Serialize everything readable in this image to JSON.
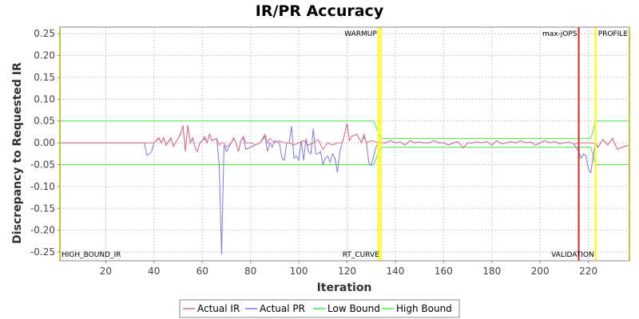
{
  "chart_data": {
    "type": "line",
    "title": "IR/PR Accuracy",
    "xlabel": "Iteration",
    "ylabel": "Discrepancy to Requested IR",
    "xlim": [
      1,
      237
    ],
    "ylim": [
      -0.27,
      0.265
    ],
    "x_ticks": [
      20,
      40,
      60,
      80,
      100,
      120,
      140,
      160,
      180,
      200,
      220
    ],
    "y_ticks": [
      -0.25,
      -0.2,
      -0.15,
      -0.1,
      -0.05,
      0.0,
      0.05,
      0.1,
      0.15,
      0.2,
      0.25
    ],
    "x_tick_labels": [
      "20",
      "40",
      "60",
      "80",
      "100",
      "120",
      "140",
      "160",
      "180",
      "200",
      "220"
    ],
    "y_tick_labels": [
      "-0.25",
      "-0.20",
      "-0.15",
      "-0.10",
      "-0.05",
      "0.00",
      "0.05",
      "0.10",
      "0.15",
      "0.20",
      "0.25"
    ],
    "grid": true,
    "legend_position": "bottom",
    "series": [
      {
        "name": "Actual IR",
        "color": "#e0707a",
        "points": [
          [
            1,
            0
          ],
          [
            36,
            0
          ],
          [
            38,
            0.0
          ],
          [
            40,
            0.0
          ],
          [
            42,
            0.012
          ],
          [
            43,
            0.0
          ],
          [
            44,
            0.012
          ],
          [
            45,
            -0.005
          ],
          [
            47,
            0.012
          ],
          [
            48,
            -0.008
          ],
          [
            50,
            0.01
          ],
          [
            51,
            0.022
          ],
          [
            52,
            0.04
          ],
          [
            53,
            -0.018
          ],
          [
            54,
            0.04
          ],
          [
            55,
            0.0
          ],
          [
            56,
            0.012
          ],
          [
            57,
            -0.01
          ],
          [
            58,
            -0.02
          ],
          [
            59,
            0.0
          ],
          [
            60,
            0.005
          ],
          [
            61,
            0.015
          ],
          [
            62,
            0.0
          ],
          [
            63,
            0.02
          ],
          [
            64,
            0.005
          ],
          [
            66,
            0.01
          ],
          [
            67,
            -0.005
          ],
          [
            68,
            0.0
          ],
          [
            69,
            0.0
          ],
          [
            70,
            -0.01
          ],
          [
            72,
            0.0
          ],
          [
            73,
            0.012
          ],
          [
            74,
            0.0
          ],
          [
            75,
            -0.02
          ],
          [
            76,
            0.005
          ],
          [
            77,
            0.015
          ],
          [
            78,
            0.0
          ],
          [
            80,
            0.0
          ],
          [
            82,
            -0.005
          ],
          [
            84,
            0.0
          ],
          [
            86,
            0.02
          ],
          [
            87,
            0.0
          ],
          [
            88,
            0.01
          ],
          [
            90,
            0.0
          ],
          [
            92,
            0.005
          ],
          [
            94,
            0.0
          ],
          [
            96,
            0.0
          ],
          [
            98,
            -0.005
          ],
          [
            100,
            0.0
          ],
          [
            102,
            0.005
          ],
          [
            104,
            -0.005
          ],
          [
            106,
            0.0
          ],
          [
            108,
            0.008
          ],
          [
            110,
            -0.015
          ],
          [
            112,
            0.0
          ],
          [
            114,
            -0.005
          ],
          [
            116,
            0.0
          ],
          [
            118,
            0.0
          ],
          [
            119,
            0.02
          ],
          [
            120,
            0.045
          ],
          [
            121,
            0.005
          ],
          [
            122,
            0.015
          ],
          [
            124,
            0.02
          ],
          [
            126,
            0.0
          ],
          [
            127,
            0.02
          ],
          [
            128,
            0.0
          ],
          [
            130,
            0.005
          ],
          [
            132,
            0.002
          ],
          [
            134,
            0.0
          ],
          [
            136,
            0.0
          ],
          [
            138,
            0.005
          ],
          [
            140,
            0.0
          ],
          [
            142,
            0.002
          ],
          [
            144,
            -0.005
          ],
          [
            146,
            0.005
          ],
          [
            148,
            0.0
          ],
          [
            150,
            0.002
          ],
          [
            152,
            0.0
          ],
          [
            154,
            0.0
          ],
          [
            156,
            0.005
          ],
          [
            158,
            0.0
          ],
          [
            160,
            0.0
          ],
          [
            162,
            -0.005
          ],
          [
            164,
            0.0
          ],
          [
            166,
            0.003
          ],
          [
            168,
            -0.012
          ],
          [
            170,
            0.0
          ],
          [
            172,
            0.0
          ],
          [
            174,
            0.002
          ],
          [
            176,
            0.0
          ],
          [
            178,
            0.003
          ],
          [
            180,
            -0.005
          ],
          [
            182,
            0.005
          ],
          [
            184,
            -0.002
          ],
          [
            186,
            0.0
          ],
          [
            188,
            0.003
          ],
          [
            190,
            0.0
          ],
          [
            192,
            0.005
          ],
          [
            194,
            0.0
          ],
          [
            196,
            0.002
          ],
          [
            198,
            -0.005
          ],
          [
            200,
            0.0
          ],
          [
            202,
            0.005
          ],
          [
            204,
            0.0
          ],
          [
            206,
            0.003
          ],
          [
            208,
            -0.002
          ],
          [
            210,
            0.0
          ],
          [
            212,
            0.002
          ],
          [
            214,
            -0.003
          ],
          [
            216,
            0.0
          ],
          [
            218,
            0.0
          ],
          [
            220,
            0.0
          ],
          [
            222,
            0.0
          ],
          [
            224,
            -0.01
          ],
          [
            226,
            0.008
          ],
          [
            228,
            -0.005
          ],
          [
            230,
            0.01
          ],
          [
            232,
            -0.015
          ],
          [
            234,
            -0.01
          ],
          [
            237,
            -0.005
          ]
        ]
      },
      {
        "name": "Actual PR",
        "color": "#7a7ae8",
        "points": [
          [
            1,
            0
          ],
          [
            36,
            0
          ],
          [
            37,
            -0.028
          ],
          [
            38,
            -0.025
          ],
          [
            39,
            -0.02
          ],
          [
            40,
            0.0
          ],
          [
            42,
            0.01
          ],
          [
            43,
            0.0
          ],
          [
            44,
            0.012
          ],
          [
            45,
            -0.005
          ],
          [
            47,
            0.01
          ],
          [
            48,
            -0.008
          ],
          [
            50,
            0.01
          ],
          [
            51,
            0.02
          ],
          [
            52,
            0.04
          ],
          [
            53,
            -0.02
          ],
          [
            54,
            0.04
          ],
          [
            55,
            0.0
          ],
          [
            56,
            0.01
          ],
          [
            57,
            -0.01
          ],
          [
            58,
            -0.02
          ],
          [
            59,
            0.0
          ],
          [
            60,
            0.005
          ],
          [
            61,
            0.01
          ],
          [
            62,
            0.0
          ],
          [
            63,
            0.02
          ],
          [
            64,
            0.005
          ],
          [
            66,
            0.01
          ],
          [
            67,
            -0.05
          ],
          [
            68,
            -0.255
          ],
          [
            69,
            -0.005
          ],
          [
            70,
            -0.02
          ],
          [
            71,
            -0.01
          ],
          [
            72,
            0.0
          ],
          [
            73,
            0.01
          ],
          [
            74,
            0.0
          ],
          [
            75,
            -0.02
          ],
          [
            76,
            0.005
          ],
          [
            77,
            0.012
          ],
          [
            78,
            -0.015
          ],
          [
            80,
            -0.01
          ],
          [
            82,
            -0.005
          ],
          [
            84,
            0.0
          ],
          [
            86,
            0.015
          ],
          [
            87,
            -0.02
          ],
          [
            88,
            0.0
          ],
          [
            89,
            -0.01
          ],
          [
            90,
            0.005
          ],
          [
            92,
            0.0
          ],
          [
            93,
            -0.035
          ],
          [
            94,
            -0.04
          ],
          [
            95,
            0.0
          ],
          [
            96,
            0.0
          ],
          [
            97,
            0.038
          ],
          [
            98,
            -0.035
          ],
          [
            99,
            -0.03
          ],
          [
            100,
            -0.04
          ],
          [
            101,
            0.005
          ],
          [
            102,
            -0.04
          ],
          [
            103,
            0.01
          ],
          [
            104,
            -0.02
          ],
          [
            105,
            -0.025
          ],
          [
            106,
            0.033
          ],
          [
            107,
            -0.025
          ],
          [
            108,
            -0.025
          ],
          [
            109,
            -0.02
          ],
          [
            110,
            -0.05
          ],
          [
            111,
            -0.035
          ],
          [
            112,
            -0.03
          ],
          [
            113,
            -0.045
          ],
          [
            114,
            -0.025
          ],
          [
            115,
            -0.035
          ],
          [
            116,
            -0.068
          ],
          [
            117,
            -0.02
          ],
          [
            118,
            0.0
          ],
          [
            119,
            0.02
          ],
          [
            120,
            0.045
          ],
          [
            121,
            0.005
          ],
          [
            122,
            0.015
          ],
          [
            124,
            0.02
          ],
          [
            126,
            0.0
          ],
          [
            127,
            0.015
          ],
          [
            128,
            0.0
          ],
          [
            129,
            -0.045
          ],
          [
            130,
            -0.052
          ],
          [
            131,
            -0.03
          ],
          [
            132,
            -0.01
          ],
          [
            133,
            0.0
          ],
          [
            134,
            0.0
          ],
          [
            136,
            0.0
          ],
          [
            138,
            0.005
          ],
          [
            140,
            0.0
          ],
          [
            142,
            0.002
          ],
          [
            144,
            -0.005
          ],
          [
            146,
            0.005
          ],
          [
            148,
            0.0
          ],
          [
            150,
            0.002
          ],
          [
            152,
            0.0
          ],
          [
            154,
            0.0
          ],
          [
            156,
            0.005
          ],
          [
            158,
            0.0
          ],
          [
            160,
            0.0
          ],
          [
            162,
            -0.005
          ],
          [
            164,
            0.0
          ],
          [
            166,
            0.003
          ],
          [
            168,
            -0.012
          ],
          [
            170,
            0.0
          ],
          [
            172,
            0.0
          ],
          [
            174,
            0.002
          ],
          [
            176,
            0.0
          ],
          [
            178,
            0.003
          ],
          [
            180,
            -0.005
          ],
          [
            182,
            0.005
          ],
          [
            184,
            -0.002
          ],
          [
            186,
            0.0
          ],
          [
            188,
            0.003
          ],
          [
            190,
            0.0
          ],
          [
            192,
            0.005
          ],
          [
            194,
            0.0
          ],
          [
            196,
            0.002
          ],
          [
            198,
            -0.005
          ],
          [
            200,
            0.0
          ],
          [
            202,
            0.005
          ],
          [
            204,
            0.0
          ],
          [
            206,
            0.003
          ],
          [
            208,
            -0.002
          ],
          [
            210,
            0.0
          ],
          [
            212,
            0.002
          ],
          [
            214,
            -0.003
          ],
          [
            216,
            -0.02
          ],
          [
            217,
            -0.035
          ],
          [
            218,
            -0.025
          ],
          [
            219,
            -0.03
          ],
          [
            220,
            -0.06
          ],
          [
            221,
            -0.068
          ],
          [
            222,
            -0.03
          ],
          [
            223,
            0.0
          ],
          [
            224,
            -0.01
          ],
          [
            226,
            0.008
          ],
          [
            228,
            -0.005
          ],
          [
            230,
            0.01
          ],
          [
            232,
            -0.015
          ],
          [
            234,
            -0.01
          ],
          [
            237,
            -0.005
          ]
        ]
      },
      {
        "name": "Low Bound",
        "color": "#44ee44",
        "points": [
          [
            1,
            -0.05
          ],
          [
            131,
            -0.05
          ],
          [
            134,
            -0.01
          ],
          [
            221,
            -0.01
          ],
          [
            223,
            -0.05
          ],
          [
            237,
            -0.05
          ]
        ]
      },
      {
        "name": "High Bound",
        "color": "#44ee44",
        "points": [
          [
            1,
            0.05
          ],
          [
            131,
            0.05
          ],
          [
            134,
            0.01
          ],
          [
            221,
            0.01
          ],
          [
            223,
            0.05
          ],
          [
            237,
            0.05
          ]
        ]
      }
    ],
    "markers": [
      {
        "x": 1,
        "label": "HIGH_BOUND_IR",
        "color": "#ffff00",
        "label_pos": "bottom"
      },
      {
        "x": 133,
        "label": "WARMUP",
        "color": "#ffff00",
        "label_pos": "top"
      },
      {
        "x": 134,
        "label": "RT_CURVE",
        "color": "#ffff00",
        "label_pos": "bottom"
      },
      {
        "x": 216,
        "label": "max-jOPS",
        "color": "#e02020",
        "label_pos": "top"
      },
      {
        "x": 223,
        "label": "VALIDATION",
        "color": "#ffff00",
        "label_pos": "bottom"
      },
      {
        "x": 237,
        "label": "PROFILE",
        "color": "#ffff00",
        "label_pos": "top"
      }
    ]
  },
  "colors": {
    "plot_background": "#ffffff",
    "grid": "#c8c8c8",
    "frame": "#888888"
  }
}
